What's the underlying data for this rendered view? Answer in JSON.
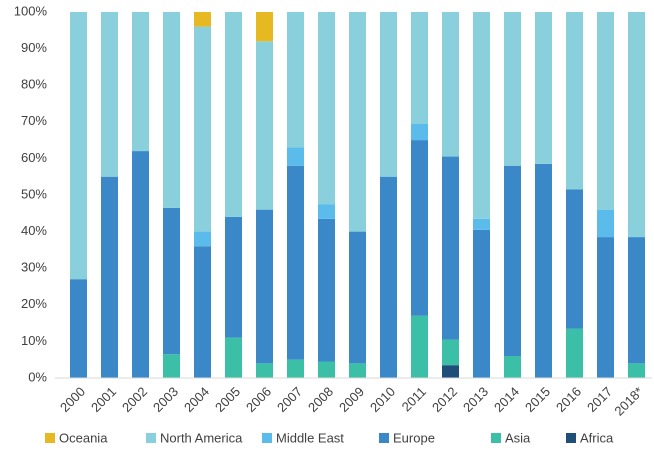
{
  "chart_data": {
    "type": "stacked_bar",
    "categories": [
      "2000",
      "2001",
      "2002",
      "2003",
      "2004",
      "2005",
      "2006",
      "2007",
      "2008",
      "2009",
      "2010",
      "2011",
      "2012",
      "2013",
      "2014",
      "2015",
      "2016",
      "2017",
      "2018*"
    ],
    "series": [
      {
        "name": "Oceania",
        "color": "#e6b822",
        "values": [
          0,
          0,
          0,
          0,
          4,
          0,
          8,
          0,
          0,
          0,
          0,
          0,
          0,
          0,
          0,
          0,
          0,
          0,
          0
        ]
      },
      {
        "name": "North America",
        "color": "#89d0dc",
        "values": [
          73,
          45,
          38,
          53.5,
          56,
          56,
          46,
          37,
          52.5,
          60,
          45,
          30.5,
          39.5,
          56.5,
          42,
          41.5,
          48.5,
          54,
          61.5
        ]
      },
      {
        "name": "Middle East",
        "color": "#5bbcec",
        "values": [
          0,
          0,
          0,
          0,
          4,
          0,
          0,
          5,
          4,
          0,
          0,
          4.5,
          0,
          3,
          0,
          0,
          0,
          7.5,
          0
        ]
      },
      {
        "name": "Europe",
        "color": "#3a88c8",
        "values": [
          27,
          55,
          62,
          40,
          36,
          33,
          42,
          53,
          39,
          36,
          55,
          48,
          50,
          40.5,
          52,
          58.5,
          38,
          38.5,
          34.5
        ]
      },
      {
        "name": "Asia",
        "color": "#3bbfa6",
        "values": [
          0,
          0,
          0,
          6.5,
          0,
          11,
          4,
          5,
          4.5,
          4,
          0,
          17,
          7,
          0,
          6,
          0,
          13.5,
          0,
          4
        ]
      },
      {
        "name": "Africa",
        "color": "#1f4e79",
        "values": [
          0,
          0,
          0,
          0,
          0,
          0,
          0,
          0,
          0,
          0,
          0,
          0,
          3.5,
          0,
          0,
          0,
          0,
          0,
          0
        ]
      }
    ],
    "ylim": [
      0,
      100
    ],
    "yticks": [
      {
        "value": 0,
        "label": "0%"
      },
      {
        "value": 10,
        "label": "10%"
      },
      {
        "value": 20,
        "label": "20%"
      },
      {
        "value": 30,
        "label": "30%"
      },
      {
        "value": 40,
        "label": "40%"
      },
      {
        "value": 50,
        "label": "50%"
      },
      {
        "value": 60,
        "label": "60%"
      },
      {
        "value": 70,
        "label": "70%"
      },
      {
        "value": 80,
        "label": "80%"
      },
      {
        "value": 90,
        "label": "90%"
      },
      {
        "value": 100,
        "label": "100%"
      }
    ],
    "grid": false,
    "legend": "bottom"
  }
}
